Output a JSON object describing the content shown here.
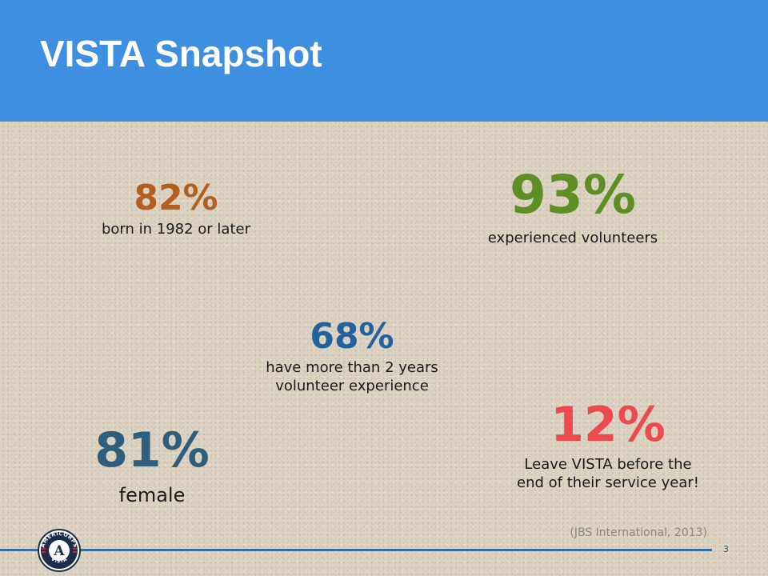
{
  "header": {
    "title": "VISTA Snapshot",
    "color": "#3f8fe0"
  },
  "stats": [
    {
      "id": "born",
      "value": "82%",
      "description": "born in 1982 or later",
      "color": "#b35f22"
    },
    {
      "id": "experienced",
      "value": "93%",
      "description": "experienced volunteers",
      "color": "#5d8f25"
    },
    {
      "id": "years",
      "value": "68%",
      "description": "have more than 2 years\nvolunteer experience",
      "color": "#24629e"
    },
    {
      "id": "female",
      "value": "81%",
      "description": "female",
      "color": "#2e5e7c"
    },
    {
      "id": "leave",
      "value": "12%",
      "description": "Leave VISTA before the\nend of their service year!",
      "color": "#ec4a4c"
    }
  ],
  "footer": {
    "citation": "(JBS International, 2013)",
    "page_number": "3",
    "logo_icon": "americorps-vista-logo-icon",
    "logo_text_top": "AMERICORPS",
    "logo_text_bottom": "VISTA",
    "logo_letter": "A"
  }
}
